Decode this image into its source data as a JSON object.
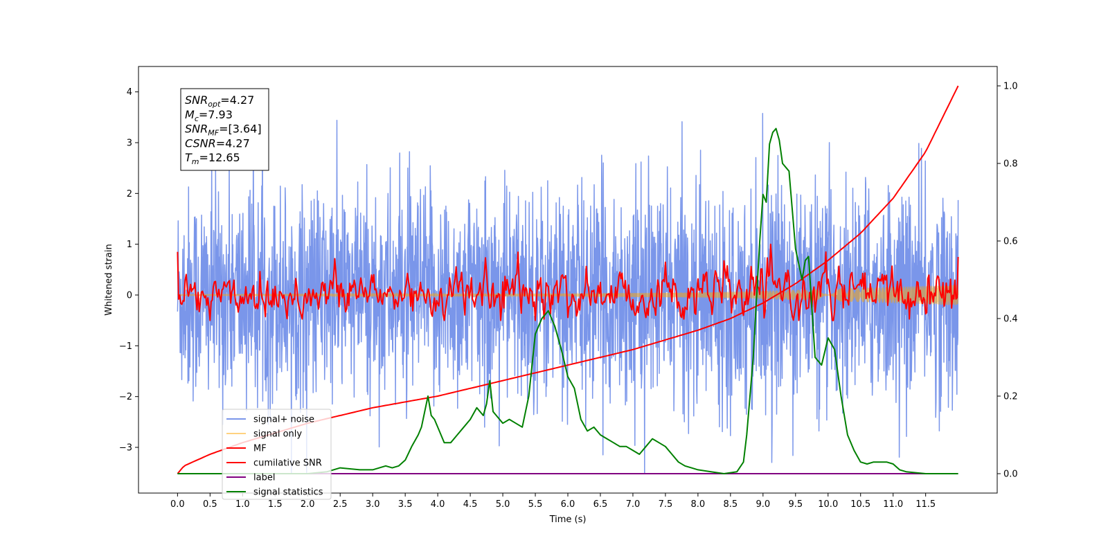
{
  "chart_data": {
    "type": "line",
    "xlabel": "Time (s)",
    "ylabel_left": "Whitened strain",
    "ylabel_right": "",
    "xlim": [
      -0.6,
      12.6
    ],
    "ylim_left": [
      -3.9,
      4.5
    ],
    "ylim_right": [
      -0.05,
      1.05
    ],
    "x_ticks": [
      0.0,
      0.5,
      1.0,
      1.5,
      2.0,
      2.5,
      3.0,
      3.5,
      4.0,
      4.5,
      5.0,
      5.5,
      6.0,
      6.5,
      7.0,
      7.5,
      8.0,
      8.5,
      9.0,
      9.5,
      10.0,
      10.5,
      11.0,
      11.5
    ],
    "x_tick_labels": [
      "0.0",
      "0.5",
      "1.0",
      "1.5",
      "2.0",
      "2.5",
      "3.0",
      "3.5",
      "4.0",
      "4.5",
      "5.0",
      "5.5",
      "6.0",
      "6.5",
      "7.0",
      "7.5",
      "8.0",
      "8.5",
      "9.0",
      "9.5",
      "10.0",
      "10.5",
      "11.0",
      "11.5"
    ],
    "y_ticks_left": [
      -3,
      -2,
      -1,
      0,
      1,
      2,
      3,
      4
    ],
    "y_tick_labels_left": [
      "−3",
      "−2",
      "−1",
      "0",
      "1",
      "2",
      "3",
      "4"
    ],
    "y_ticks_right": [
      0.0,
      0.2,
      0.4,
      0.6,
      0.8,
      1.0
    ],
    "y_tick_labels_right": [
      "0.0",
      "0.2",
      "0.4",
      "0.6",
      "0.8",
      "1.0"
    ],
    "grid": false,
    "legend_position": "lower-left",
    "annotation_box": {
      "position": "top-left",
      "lines": [
        {
          "symbol": "SNR",
          "subscript": "opt",
          "value": "=4.27"
        },
        {
          "symbol": "M",
          "subscript": "c",
          "value": "=7.93"
        },
        {
          "symbol": "SNR",
          "subscript": "MF",
          "value": "=[3.64]"
        },
        {
          "symbol": "CSNR",
          "subscript": "",
          "value": "=4.27"
        },
        {
          "symbol": "T",
          "subscript": "m",
          "value": "=12.65"
        }
      ]
    },
    "series": [
      {
        "name": "signal+ noise",
        "axis": "left",
        "color": "#4169e1",
        "opacity": 0.7,
        "description_points": {
          "x_range": [
            0,
            12
          ],
          "y_typical_range": [
            -2.5,
            2.5
          ],
          "y_extremes": [
            -3.5,
            4.2
          ],
          "sample_count": 2400
        }
      },
      {
        "name": "signal only",
        "axis": "left",
        "color": "#ffa500",
        "opacity": 0.5,
        "envelope": {
          "x": [
            0,
            2,
            4,
            6,
            8,
            9,
            10,
            11,
            12
          ],
          "amplitude": [
            0.01,
            0.015,
            0.02,
            0.03,
            0.05,
            0.08,
            0.12,
            0.16,
            0.2
          ]
        }
      },
      {
        "name": "MF",
        "axis": "left",
        "color": "#ff0000",
        "y_typical_range": [
          -0.5,
          1.0
        ],
        "start_value": 0.85,
        "end_value": 0.75
      },
      {
        "name": "cumilative SNR",
        "axis": "right",
        "color": "#ff0000",
        "x": [
          0,
          0.1,
          0.5,
          1,
          2,
          3,
          4,
          5,
          6,
          7,
          8,
          8.5,
          9,
          9.5,
          10,
          10.5,
          11,
          11.5,
          12
        ],
        "y": [
          0.0,
          0.02,
          0.05,
          0.08,
          0.13,
          0.17,
          0.2,
          0.24,
          0.28,
          0.32,
          0.37,
          0.4,
          0.44,
          0.49,
          0.55,
          0.62,
          0.71,
          0.83,
          1.0
        ]
      },
      {
        "name": "label",
        "axis": "right",
        "color": "#800080",
        "x": [
          0,
          12
        ],
        "y": [
          0.0,
          0.0
        ]
      },
      {
        "name": "signal statistics",
        "axis": "right",
        "color": "#008000",
        "x": [
          0,
          0.5,
          1,
          1.5,
          2,
          2.3,
          2.5,
          2.8,
          3.0,
          3.2,
          3.3,
          3.4,
          3.5,
          3.6,
          3.7,
          3.75,
          3.85,
          3.9,
          3.95,
          4.0,
          4.1,
          4.2,
          4.3,
          4.4,
          4.5,
          4.6,
          4.7,
          4.75,
          4.8,
          4.85,
          4.9,
          5.0,
          5.1,
          5.2,
          5.3,
          5.4,
          5.5,
          5.6,
          5.7,
          5.8,
          5.9,
          6.0,
          6.1,
          6.2,
          6.3,
          6.4,
          6.5,
          6.6,
          6.7,
          6.8,
          6.9,
          7.0,
          7.1,
          7.2,
          7.3,
          7.4,
          7.5,
          7.6,
          7.7,
          7.8,
          7.9,
          8.0,
          8.2,
          8.4,
          8.6,
          8.7,
          8.75,
          8.8,
          8.85,
          8.9,
          8.95,
          9.0,
          9.05,
          9.1,
          9.15,
          9.2,
          9.25,
          9.3,
          9.4,
          9.5,
          9.6,
          9.65,
          9.7,
          9.8,
          9.9,
          10.0,
          10.1,
          10.2,
          10.3,
          10.4,
          10.5,
          10.6,
          10.7,
          10.8,
          10.9,
          11.0,
          11.1,
          11.2,
          11.5,
          12
        ],
        "y": [
          0.0,
          0.0,
          0.0,
          0.0,
          0.0,
          0.005,
          0.015,
          0.01,
          0.01,
          0.02,
          0.015,
          0.02,
          0.035,
          0.07,
          0.1,
          0.12,
          0.2,
          0.15,
          0.14,
          0.12,
          0.08,
          0.08,
          0.1,
          0.12,
          0.14,
          0.17,
          0.15,
          0.18,
          0.24,
          0.16,
          0.15,
          0.13,
          0.14,
          0.13,
          0.12,
          0.2,
          0.36,
          0.4,
          0.42,
          0.38,
          0.32,
          0.25,
          0.22,
          0.14,
          0.11,
          0.12,
          0.1,
          0.09,
          0.08,
          0.07,
          0.07,
          0.06,
          0.05,
          0.07,
          0.09,
          0.08,
          0.07,
          0.05,
          0.03,
          0.02,
          0.015,
          0.01,
          0.005,
          0.0,
          0.005,
          0.03,
          0.1,
          0.2,
          0.3,
          0.45,
          0.6,
          0.72,
          0.7,
          0.85,
          0.88,
          0.89,
          0.86,
          0.8,
          0.78,
          0.58,
          0.5,
          0.55,
          0.56,
          0.3,
          0.28,
          0.35,
          0.32,
          0.2,
          0.1,
          0.06,
          0.03,
          0.025,
          0.03,
          0.03,
          0.03,
          0.025,
          0.01,
          0.005,
          0.0,
          0.0
        ]
      }
    ]
  }
}
